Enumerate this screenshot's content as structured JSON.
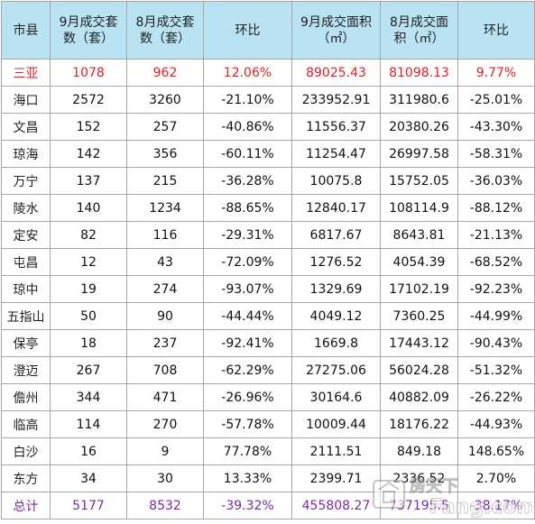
{
  "headers": [
    "市县",
    "9月成交套数（套）",
    "8月成交套数（套）",
    "环比",
    "9月成交面积（㎡）",
    "8月成交面积（㎡）",
    "环比"
  ],
  "header_lines": [
    [
      "市县"
    ],
    [
      "9月成交套",
      "数（套）"
    ],
    [
      "8月成交套",
      "数（套）"
    ],
    [
      "环比"
    ],
    [
      "9月成交面积",
      "（㎡）"
    ],
    [
      "8月成交面",
      "积（㎡）"
    ],
    [
      "环比"
    ]
  ],
  "rows": [
    [
      "三亚",
      "1078",
      "962",
      "12.06%",
      "89025.43",
      "81098.13",
      "9.77%"
    ],
    [
      "海口",
      "2572",
      "3260",
      "-21.10%",
      "233952.91",
      "311980.6",
      "-25.01%"
    ],
    [
      "文昌",
      "152",
      "257",
      "-40.86%",
      "11556.37",
      "20380.26",
      "-43.30%"
    ],
    [
      "琼海",
      "142",
      "356",
      "-60.11%",
      "11254.47",
      "26997.58",
      "-58.31%"
    ],
    [
      "万宁",
      "137",
      "215",
      "-36.28%",
      "10075.8",
      "15752.05",
      "-36.03%"
    ],
    [
      "陵水",
      "140",
      "1234",
      "-88.65%",
      "12840.17",
      "108114.9",
      "-88.12%"
    ],
    [
      "定安",
      "82",
      "116",
      "-29.31%",
      "6817.67",
      "8643.81",
      "-21.13%"
    ],
    [
      "屯昌",
      "12",
      "43",
      "-72.09%",
      "1276.52",
      "4054.39",
      "-68.52%"
    ],
    [
      "琼中",
      "19",
      "274",
      "-93.07%",
      "1329.69",
      "17102.19",
      "-92.23%"
    ],
    [
      "五指山",
      "50",
      "90",
      "-44.44%",
      "4049.12",
      "7360.25",
      "-44.99%"
    ],
    [
      "保亭",
      "18",
      "237",
      "-92.41%",
      "1669.8",
      "17443.12",
      "-90.43%"
    ],
    [
      "澄迈",
      "267",
      "708",
      "-62.29%",
      "27275.06",
      "56024.28",
      "-51.32%"
    ],
    [
      "儋州",
      "344",
      "471",
      "-26.96%",
      "30164.6",
      "40882.09",
      "-26.22%"
    ],
    [
      "临高",
      "114",
      "270",
      "-57.78%",
      "10009.44",
      "18176.22",
      "-44.93%"
    ],
    [
      "白沙",
      "16",
      "9",
      "77.78%",
      "2111.51",
      "849.18",
      "148.65%"
    ],
    [
      "东方",
      "34",
      "30",
      "13.33%",
      "2399.71",
      "2336.52",
      "2.70%"
    ],
    [
      "总计",
      "5177",
      "8532",
      "-39.32%",
      "455808.27",
      "737195.5",
      "-38.17%"
    ]
  ],
  "watermark": {
    "text": "房天下",
    "subtext": "Fang.com"
  },
  "colors": {
    "header_bg": "#b9e3f3",
    "highlight_red": "#e02020",
    "total_purple": "#7a2aa8",
    "border": "#a6a6a6"
  }
}
